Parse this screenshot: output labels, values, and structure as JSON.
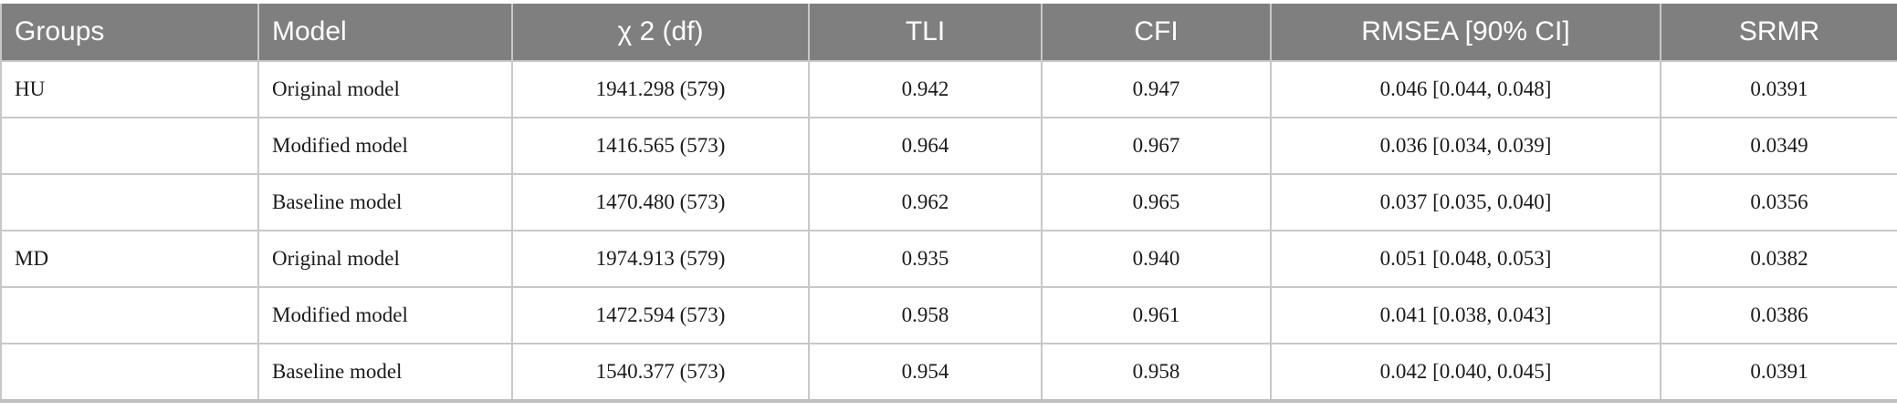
{
  "table": {
    "columns": [
      "Groups",
      "Model",
      "χ 2 (df)",
      "TLI",
      "CFI",
      "RMSEA [90% CI]",
      "SRMR"
    ],
    "rows": [
      {
        "group": "HU",
        "cells": [
          "Original model",
          "1941.298 (579)",
          "0.942",
          "0.947",
          "0.046 [0.044, 0.048]",
          "0.0391"
        ]
      },
      {
        "cells": [
          "Modified model",
          "1416.565 (573)",
          "0.964",
          "0.967",
          "0.036 [0.034, 0.039]",
          "0.0349"
        ]
      },
      {
        "cells": [
          "Baseline model",
          "1470.480 (573)",
          "0.962",
          "0.965",
          "0.037 [0.035, 0.040]",
          "0.0356"
        ]
      },
      {
        "group": "MD",
        "cells": [
          "Original model",
          "1974.913 (579)",
          "0.935",
          "0.940",
          "0.051 [0.048, 0.053]",
          "0.0382"
        ]
      },
      {
        "cells": [
          "Modified model",
          "1472.594 (573)",
          "0.958",
          "0.961",
          "0.041 [0.038, 0.043]",
          "0.0386"
        ]
      },
      {
        "cells": [
          "Baseline model",
          "1540.377 (573)",
          "0.954",
          "0.958",
          "0.042 [0.040, 0.045]",
          "0.0391"
        ]
      }
    ]
  }
}
